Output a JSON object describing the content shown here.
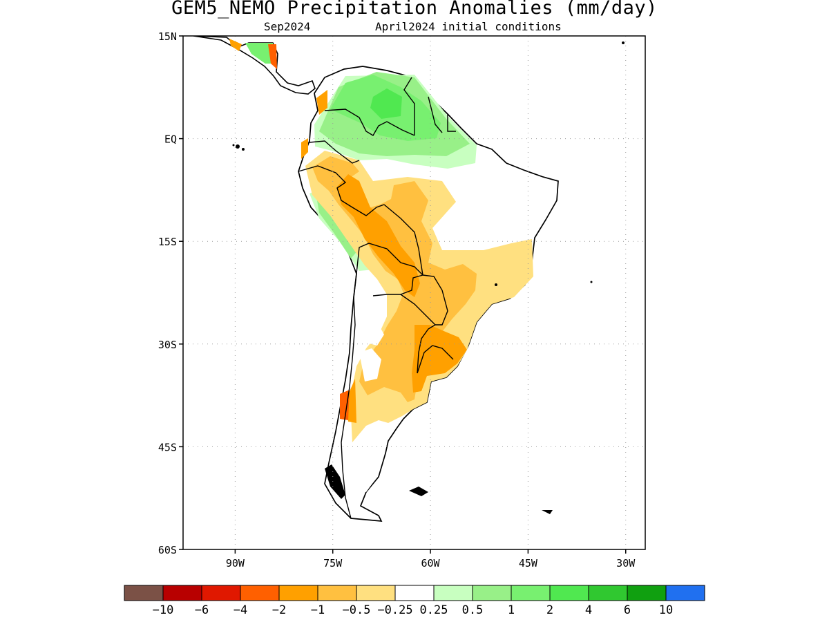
{
  "title": "GEM5_NEMO Precipitation Anomalies (mm/day)",
  "subtitle_left": "Sep2024",
  "subtitle_right": "April2024 initial conditions",
  "map": {
    "lon_range": [
      -98,
      -27
    ],
    "lat_range": [
      -60,
      15
    ],
    "lat_ticks": [
      {
        "label": "15N",
        "value": 15
      },
      {
        "label": "EQ",
        "value": 0
      },
      {
        "label": "15S",
        "value": -15
      },
      {
        "label": "30S",
        "value": -30
      },
      {
        "label": "45S",
        "value": -45
      },
      {
        "label": "60S",
        "value": -60
      }
    ],
    "lon_ticks": [
      {
        "label": "90W",
        "value": -90
      },
      {
        "label": "75W",
        "value": -75
      },
      {
        "label": "60W",
        "value": -60
      },
      {
        "label": "45W",
        "value": -45
      },
      {
        "label": "30W",
        "value": -30
      }
    ],
    "grid": "dotted"
  },
  "colorbar": {
    "colors": [
      "#7b5146",
      "#b80000",
      "#e01800",
      "#ff6000",
      "#ffa000",
      "#ffc040",
      "#ffe080",
      "#ffffff",
      "#c8ffc0",
      "#98f088",
      "#78f070",
      "#50e850",
      "#30c830",
      "#10a010",
      "#2070f0"
    ],
    "labels": [
      "-10",
      "-6",
      "-4",
      "-2",
      "-1",
      "-0.5",
      "-0.25",
      "0.25",
      "0.5",
      "1",
      "2",
      "4",
      "6",
      "10"
    ]
  }
}
